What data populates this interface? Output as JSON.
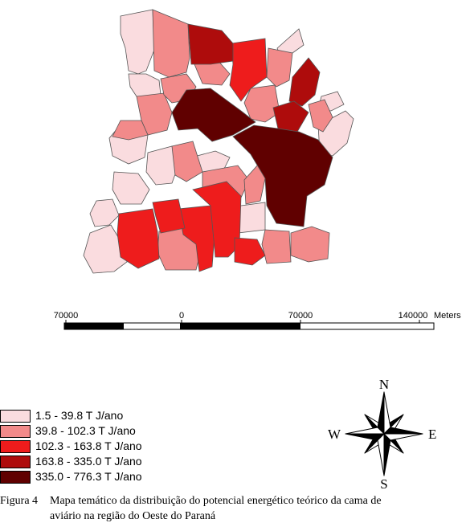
{
  "map": {
    "class_colors": [
      "#fadcdf",
      "#f28a8a",
      "#ee1c1c",
      "#ae0c0c",
      "#600000"
    ]
  },
  "scale_bar": {
    "labels": [
      "70000",
      "0",
      "70000",
      "140000"
    ],
    "unit": "Meters"
  },
  "legend": {
    "items": [
      {
        "label": "1.5  - 39.8 T J/ano",
        "color": "#fadcdf"
      },
      {
        "label": "39.8 - 102.3 T J/ano",
        "color": "#f28a8a"
      },
      {
        "label": "102.3 - 163.8 T J/ano",
        "color": "#ee1c1c"
      },
      {
        "label": "163.8 - 335.0 T J/ano",
        "color": "#ae0c0c"
      },
      {
        "label": "335.0 - 776.3 T J/ano",
        "color": "#600000"
      }
    ]
  },
  "compass": {
    "n": "N",
    "s": "S",
    "e": "E",
    "w": "W"
  },
  "caption": {
    "label": "Figura 4",
    "line1": "Mapa temático da distribuição do potencial energético teórico da cama de",
    "line2": "aviário na  região do Oeste do Paraná"
  }
}
